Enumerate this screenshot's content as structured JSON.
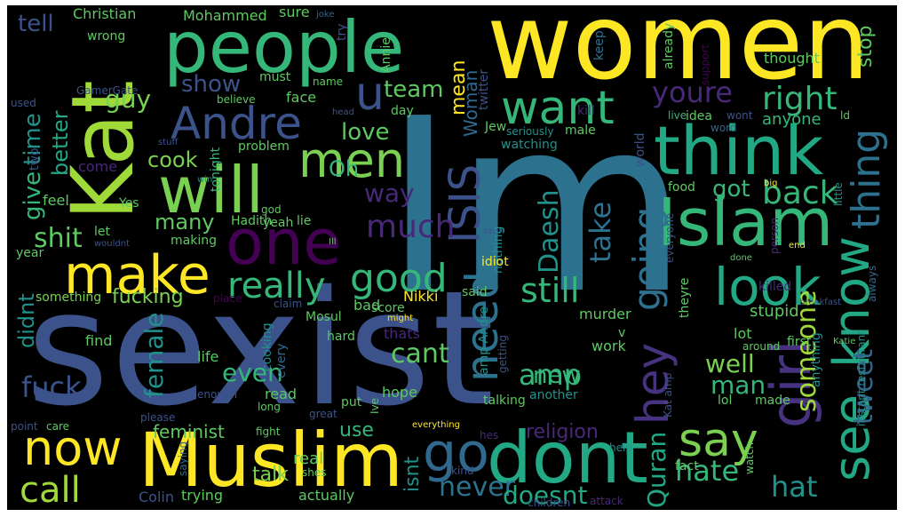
{
  "wordcloud": {
    "background": "#000000",
    "words": [
      {
        "text": "sexist",
        "color": "#3b528b"
      },
      {
        "text": "Im",
        "color": "#2c728e"
      },
      {
        "text": "women",
        "color": "#fde725"
      },
      {
        "text": "Kat",
        "color": "#a0da39"
      },
      {
        "text": "people",
        "color": "#35b779"
      },
      {
        "text": "Muslim",
        "color": "#fde725"
      },
      {
        "text": "dont",
        "color": "#22a884"
      },
      {
        "text": "think",
        "color": "#22a884"
      },
      {
        "text": "Islam",
        "color": "#35b779"
      },
      {
        "text": "will",
        "color": "#7ad151"
      },
      {
        "text": "make",
        "color": "#fde725"
      },
      {
        "text": "one",
        "color": "#440154"
      },
      {
        "text": "Andre",
        "color": "#3b528b"
      },
      {
        "text": "look",
        "color": "#22a884"
      },
      {
        "text": "girl",
        "color": "#46327e"
      },
      {
        "text": "know",
        "color": "#22a884"
      },
      {
        "text": "see",
        "color": "#22a884"
      },
      {
        "text": "say",
        "color": "#7ad151"
      },
      {
        "text": "need",
        "color": "#2c728e"
      },
      {
        "text": "ISIS",
        "color": "#3b528b"
      },
      {
        "text": "go",
        "color": "#31688e"
      },
      {
        "text": "good",
        "color": "#35b779"
      },
      {
        "text": "now",
        "color": "#fde725"
      },
      {
        "text": "call",
        "color": "#a0da39"
      },
      {
        "text": "want",
        "color": "#35b779"
      },
      {
        "text": "men",
        "color": "#7ad151"
      },
      {
        "text": "u",
        "color": "#3b528b"
      },
      {
        "text": "hey",
        "color": "#46327e"
      },
      {
        "text": "going",
        "color": "#2c728e"
      },
      {
        "text": "thing",
        "color": "#2c728e"
      },
      {
        "text": "really",
        "color": "#35b779"
      },
      {
        "text": "back",
        "color": "#35b779"
      },
      {
        "text": "right",
        "color": "#35b779"
      },
      {
        "text": "youre",
        "color": "#482878"
      },
      {
        "text": "tweet",
        "color": "#31688e"
      },
      {
        "text": "someone",
        "color": "#a0da39"
      },
      {
        "text": "much",
        "color": "#482878"
      },
      {
        "text": "still",
        "color": "#35b779"
      },
      {
        "text": "amp",
        "color": "#35b779"
      },
      {
        "text": "take",
        "color": "#2c728e"
      },
      {
        "text": "Daesh",
        "color": "#21918c"
      },
      {
        "text": "never",
        "color": "#2c728e"
      },
      {
        "text": "doesnt",
        "color": "#22a884"
      },
      {
        "text": "hate",
        "color": "#35b779"
      },
      {
        "text": "hat",
        "color": "#21918c"
      },
      {
        "text": "Quran",
        "color": "#22a884"
      },
      {
        "text": "feminist",
        "color": "#5ec962"
      },
      {
        "text": "fuck",
        "color": "#3b528b"
      },
      {
        "text": "female",
        "color": "#21918c"
      },
      {
        "text": "cant",
        "color": "#5ec962"
      },
      {
        "text": "even",
        "color": "#35b779"
      },
      {
        "text": "well",
        "color": "#7ad151"
      },
      {
        "text": "man",
        "color": "#35b779"
      },
      {
        "text": "new",
        "color": "#35b779"
      },
      {
        "text": "religion",
        "color": "#482878"
      },
      {
        "text": "time",
        "color": "#21918c"
      },
      {
        "text": "give",
        "color": "#35b779"
      },
      {
        "text": "shit",
        "color": "#5ec962"
      },
      {
        "text": "guy",
        "color": "#7ad151"
      },
      {
        "text": "better",
        "color": "#22a884"
      },
      {
        "text": "cook",
        "color": "#7ad151"
      },
      {
        "text": "many",
        "color": "#5ec962"
      },
      {
        "text": "tell",
        "color": "#3b528b"
      },
      {
        "text": "show",
        "color": "#3b528b"
      },
      {
        "text": "team",
        "color": "#5ec962"
      },
      {
        "text": "love",
        "color": "#5ec962"
      },
      {
        "text": "Oh",
        "color": "#35b779"
      },
      {
        "text": "way",
        "color": "#482878"
      },
      {
        "text": "got",
        "color": "#35b779"
      },
      {
        "text": "stop",
        "color": "#5ec962"
      },
      {
        "text": "Woman",
        "color": "#31688e"
      },
      {
        "text": "mean",
        "color": "#fde725"
      },
      {
        "text": "use",
        "color": "#35b779"
      },
      {
        "text": "talk",
        "color": "#7ad151"
      },
      {
        "text": "isnt",
        "color": "#21918c"
      },
      {
        "text": "real",
        "color": "#5ec962"
      },
      {
        "text": "didnt",
        "color": "#21918c"
      },
      {
        "text": "fucking",
        "color": "#7ad151"
      },
      {
        "text": "something",
        "color": "#7ad151"
      },
      {
        "text": "Christian",
        "color": "#5ec962"
      },
      {
        "text": "Mohammed",
        "color": "#5ec962"
      },
      {
        "text": "sure",
        "color": "#5ec962"
      },
      {
        "text": "joke",
        "color": "#31688e"
      },
      {
        "text": "try",
        "color": "#3b528b"
      },
      {
        "text": "Annie",
        "color": "#5ec962"
      },
      {
        "text": "already",
        "color": "#5ec962"
      },
      {
        "text": "support",
        "color": "#440154"
      },
      {
        "text": "keep",
        "color": "#2c728e"
      },
      {
        "text": "twitter",
        "color": "#3b528b"
      },
      {
        "text": "kill",
        "color": "#482878"
      },
      {
        "text": "thought",
        "color": "#5ec962"
      },
      {
        "text": "wrong",
        "color": "#5ec962"
      },
      {
        "text": "GamerGate",
        "color": "#3b528b"
      },
      {
        "text": "used",
        "color": "#3b528b"
      },
      {
        "text": "believe",
        "color": "#5ec962"
      },
      {
        "text": "must",
        "color": "#5ec962"
      },
      {
        "text": "name",
        "color": "#5ec962"
      },
      {
        "text": "face",
        "color": "#5ec962"
      },
      {
        "text": "day",
        "color": "#5ec962"
      },
      {
        "text": "head",
        "color": "#3b528b"
      },
      {
        "text": "Jew",
        "color": "#5ec962"
      },
      {
        "text": "seriously",
        "color": "#21918c"
      },
      {
        "text": "male",
        "color": "#5ec962"
      },
      {
        "text": "watching",
        "color": "#21918c"
      },
      {
        "text": "world",
        "color": "#3b528b"
      },
      {
        "text": "live",
        "color": "#35b779"
      },
      {
        "text": "idea",
        "color": "#5ec962"
      },
      {
        "text": "wont",
        "color": "#3b528b"
      },
      {
        "text": "word",
        "color": "#31688e"
      },
      {
        "text": "anyone",
        "color": "#35b779"
      },
      {
        "text": "ld",
        "color": "#5ec962"
      },
      {
        "text": "food",
        "color": "#5ec962"
      },
      {
        "text": "big",
        "color": "#fde725"
      },
      {
        "text": "little",
        "color": "#21918c"
      },
      {
        "text": "two",
        "color": "#3b528b"
      },
      {
        "text": "come",
        "color": "#482878"
      },
      {
        "text": "feel",
        "color": "#5ec962"
      },
      {
        "text": "stuff",
        "color": "#3b528b"
      },
      {
        "text": "win",
        "color": "#21918c"
      },
      {
        "text": "tonight",
        "color": "#35b779"
      },
      {
        "text": "problem",
        "color": "#5ec962"
      },
      {
        "text": "god",
        "color": "#5ec962"
      },
      {
        "text": "yeah",
        "color": "#5ec962"
      },
      {
        "text": "lie",
        "color": "#5ec962"
      },
      {
        "text": "Hadith",
        "color": "#5ec962"
      },
      {
        "text": "Yes",
        "color": "#5ec962"
      },
      {
        "text": "let",
        "color": "#5ec962"
      },
      {
        "text": "making",
        "color": "#5ec962"
      },
      {
        "text": "wouldnt",
        "color": "#3b528b"
      },
      {
        "text": "Ill",
        "color": "#5ec962"
      },
      {
        "text": "seen",
        "color": "#3b528b"
      },
      {
        "text": "nothing",
        "color": "#21918c"
      },
      {
        "text": "everyone",
        "color": "#3b528b"
      },
      {
        "text": "done",
        "color": "#5ec962"
      },
      {
        "text": "person",
        "color": "#482878"
      },
      {
        "text": "end",
        "color": "#fde725"
      },
      {
        "text": "year",
        "color": "#5ec962"
      },
      {
        "text": "bad",
        "color": "#5ec962"
      },
      {
        "text": "idiot",
        "color": "#fde725"
      },
      {
        "text": "murder",
        "color": "#5ec962"
      },
      {
        "text": "theyre",
        "color": "#5ec962"
      },
      {
        "text": "killed",
        "color": "#482878"
      },
      {
        "text": "always",
        "color": "#31688e"
      },
      {
        "text": "Nikki",
        "color": "#fde725"
      },
      {
        "text": "said",
        "color": "#5ec962"
      },
      {
        "text": "claim",
        "color": "#3b528b"
      },
      {
        "text": "place",
        "color": "#440154"
      },
      {
        "text": "Mosul",
        "color": "#5ec962"
      },
      {
        "text": "score",
        "color": "#5ec962"
      },
      {
        "text": "might",
        "color": "#fde725"
      },
      {
        "text": "breakfast",
        "color": "#3b528b"
      },
      {
        "text": "stupid",
        "color": "#5ec962"
      },
      {
        "text": "lot",
        "color": "#5ec962"
      },
      {
        "text": "hard",
        "color": "#5ec962"
      },
      {
        "text": "thats",
        "color": "#482878"
      },
      {
        "text": "getting",
        "color": "#3b528b"
      },
      {
        "text": "first",
        "color": "#5ec962"
      },
      {
        "text": "around",
        "color": "#5ec962"
      },
      {
        "text": "Katie",
        "color": "#5ec962"
      },
      {
        "text": "instant restaurant",
        "color": "#21918c"
      },
      {
        "text": "find",
        "color": "#5ec962"
      },
      {
        "text": "life",
        "color": "#5ec962"
      },
      {
        "text": "cooking",
        "color": "#21918c"
      },
      {
        "text": "every",
        "color": "#31688e"
      },
      {
        "text": "amp Andre",
        "color": "#21918c"
      },
      {
        "text": "work",
        "color": "#5ec962"
      },
      {
        "text": "v",
        "color": "#5ec962"
      },
      {
        "text": "Kat amp",
        "color": "#3b528b"
      },
      {
        "text": "anything",
        "color": "#21918c"
      },
      {
        "text": "lol",
        "color": "#5ec962"
      },
      {
        "text": "made",
        "color": "#5ec962"
      },
      {
        "text": "read",
        "color": "#5ec962"
      },
      {
        "text": "enough",
        "color": "#3b528b"
      },
      {
        "text": "long",
        "color": "#5ec962"
      },
      {
        "text": "put",
        "color": "#5ec962"
      },
      {
        "text": "hope",
        "color": "#5ec962"
      },
      {
        "text": "talking",
        "color": "#5ec962"
      },
      {
        "text": "another",
        "color": "#21918c"
      },
      {
        "text": "Ive",
        "color": "#5ec962"
      },
      {
        "text": "please",
        "color": "#3b528b"
      },
      {
        "text": "great",
        "color": "#3b528b"
      },
      {
        "text": "point",
        "color": "#3b528b"
      },
      {
        "text": "care",
        "color": "#5ec962"
      },
      {
        "text": "saying",
        "color": "#31688e"
      },
      {
        "text": "fight",
        "color": "#5ec962"
      },
      {
        "text": "shes",
        "color": "#5ec962"
      },
      {
        "text": "everything",
        "color": "#fde725"
      },
      {
        "text": "hes",
        "color": "#482878"
      },
      {
        "text": "kind",
        "color": "#3b528b"
      },
      {
        "text": "help",
        "color": "#21918c"
      },
      {
        "text": "fact",
        "color": "#5ec962"
      },
      {
        "text": "watch",
        "color": "#5ec962"
      },
      {
        "text": "Colin",
        "color": "#3b528b"
      },
      {
        "text": "trying",
        "color": "#5ec962"
      },
      {
        "text": "actually",
        "color": "#5ec962"
      },
      {
        "text": "children",
        "color": "#3b528b"
      },
      {
        "text": "attack",
        "color": "#482878"
      }
    ]
  }
}
